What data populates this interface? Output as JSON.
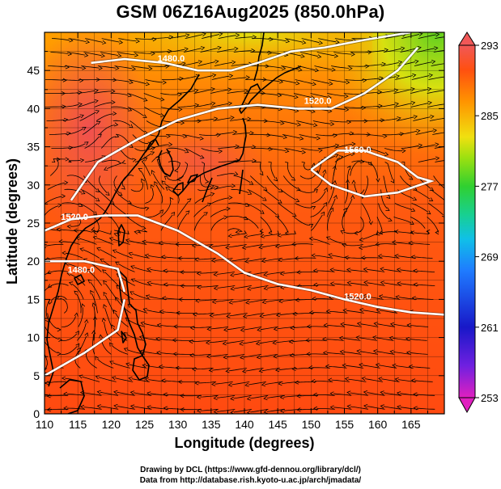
{
  "title": "GSM 06Z16Aug2025 (850.0hPa)",
  "x_axis": {
    "label": "Longitude (degrees)",
    "ticks": [
      "110",
      "115",
      "120",
      "125",
      "130",
      "135",
      "140",
      "145",
      "150",
      "155",
      "160",
      "165"
    ]
  },
  "y_axis": {
    "label": "Latitude  (degrees)",
    "ticks": [
      "0",
      "5",
      "10",
      "15",
      "20",
      "25",
      "30",
      "35",
      "40",
      "45"
    ]
  },
  "colorbar": {
    "ticks": [
      "253",
      "261",
      "269",
      "277",
      "285",
      "293"
    ],
    "colors": [
      "#e020c0",
      "#7020e0",
      "#1818c8",
      "#1f7bff",
      "#10c0e8",
      "#18d090",
      "#30d030",
      "#9be010",
      "#f0e010",
      "#ff9400",
      "#ff5010",
      "#f05858"
    ]
  },
  "contour_labels": [
    "1480.0",
    "1520.0",
    "1560.0",
    "1520.0",
    "1480.0",
    "1520.0"
  ],
  "credits": {
    "line1": "Drawing by DCL (https://www.gfd-dennou.org/library/dcl/)",
    "line2": "Data from http://database.rish.kyoto-u.ac.jp/arch/jmadata/"
  },
  "chart_data": {
    "type": "heatmap",
    "title": "GSM 06Z16Aug2025 (850.0hPa)",
    "xlabel": "Longitude (degrees)",
    "ylabel": "Latitude  (degrees)",
    "xlim": [
      110,
      170
    ],
    "ylim": [
      0,
      50
    ],
    "colorbar_range": [
      253,
      293
    ],
    "contours": [
      {
        "level": 1480.0,
        "points": [
          [
            117,
            46
          ],
          [
            122,
            46.5
          ],
          [
            128,
            46
          ],
          [
            133,
            45
          ],
          [
            138,
            45
          ],
          [
            142,
            46
          ],
          [
            147,
            47.5
          ],
          [
            152,
            48
          ],
          [
            158,
            49
          ],
          [
            165,
            50
          ]
        ]
      },
      {
        "level": 1520.0,
        "points": [
          [
            114,
            28
          ],
          [
            118,
            33
          ],
          [
            124,
            36
          ],
          [
            130,
            38.5
          ],
          [
            136,
            40
          ],
          [
            142,
            40.5
          ],
          [
            148,
            40
          ],
          [
            153,
            40
          ],
          [
            158,
            42
          ],
          [
            163,
            45
          ],
          [
            166,
            48
          ]
        ]
      },
      {
        "level": 1560.0,
        "points": [
          [
            150,
            32
          ],
          [
            154,
            34.5
          ],
          [
            158,
            34.5
          ],
          [
            163,
            33
          ],
          [
            166,
            31
          ],
          [
            168,
            30.5
          ],
          [
            163,
            29
          ],
          [
            158,
            28.5
          ],
          [
            153,
            30
          ],
          [
            150,
            32
          ]
        ]
      },
      {
        "level": 1520.0,
        "points": [
          [
            110,
            24
          ],
          [
            114,
            25.5
          ],
          [
            119,
            26
          ],
          [
            124,
            26
          ],
          [
            130,
            24
          ],
          [
            136,
            21
          ],
          [
            140,
            18.5
          ],
          [
            145,
            17
          ],
          [
            150,
            16.2
          ],
          [
            155,
            15
          ],
          [
            160,
            14
          ],
          [
            165,
            13.3
          ],
          [
            170,
            13
          ]
        ]
      },
      {
        "level": 1480.0,
        "points": [
          [
            110,
            20
          ],
          [
            116,
            20
          ],
          [
            121,
            19
          ],
          [
            122,
            16
          ]
        ]
      },
      {
        "level": 1520.0,
        "points": [
          [
            110,
            5
          ],
          [
            116,
            8
          ],
          [
            121,
            11
          ],
          [
            122,
            15
          ]
        ]
      }
    ]
  }
}
